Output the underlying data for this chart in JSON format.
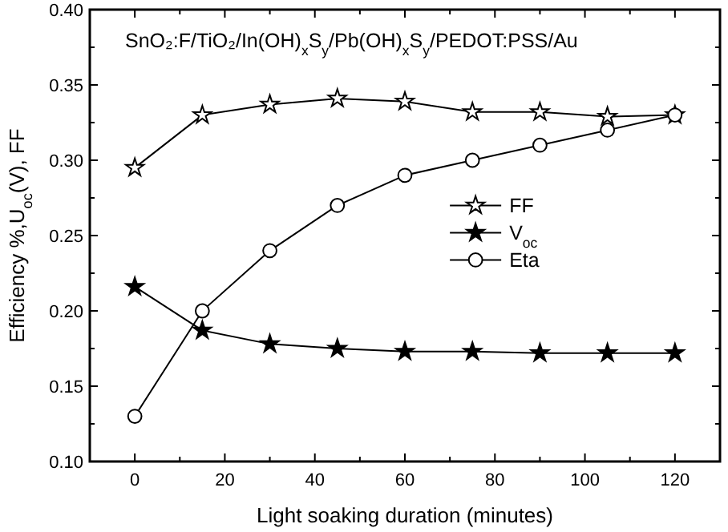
{
  "chart_data": {
    "type": "line",
    "title": "SnO₂:F/TiO₂/In(OH)$_{x}$S$_{y}$/Pb(OH)$_{x}$S$_{y}$/PEDOT:PSS/Au",
    "xlabel": "Light soaking duration (minutes)",
    "ylabel": "Efficiency %,U$_{oc}$(V), FF",
    "x": [
      0,
      15,
      30,
      45,
      60,
      75,
      90,
      105,
      120
    ],
    "xlim": [
      -10,
      130
    ],
    "xticks": [
      0,
      20,
      40,
      60,
      80,
      100,
      120
    ],
    "ylim": [
      0.1,
      0.4
    ],
    "yticks": [
      {
        "value": 0.1,
        "label": "0.10"
      },
      {
        "value": 0.15,
        "label": "0.15"
      },
      {
        "value": 0.2,
        "label": "0.20"
      },
      {
        "value": 0.25,
        "label": "0.25"
      },
      {
        "value": 0.3,
        "label": "0.30"
      },
      {
        "value": 0.35,
        "label": "0.35"
      },
      {
        "value": 0.4,
        "label": "0.40"
      }
    ],
    "grid": false,
    "legend": "right",
    "line_style": "solid",
    "series": [
      {
        "name": "FF",
        "color": "#000000",
        "marker": "star",
        "values": [
          0.295,
          0.33,
          0.337,
          0.341,
          0.339,
          0.332,
          0.332,
          0.329,
          0.33
        ]
      },
      {
        "name": "V$_{oc}$",
        "color": "#000000",
        "marker": "star",
        "values": [
          0.216,
          0.187,
          0.178,
          0.175,
          0.173,
          0.173,
          0.172,
          0.172,
          0.172
        ]
      },
      {
        "name": "Eta",
        "color": "#000000",
        "marker": "circle",
        "values": [
          0.13,
          0.2,
          0.24,
          0.27,
          0.29,
          0.3,
          0.31,
          0.32,
          0.33
        ]
      }
    ]
  }
}
